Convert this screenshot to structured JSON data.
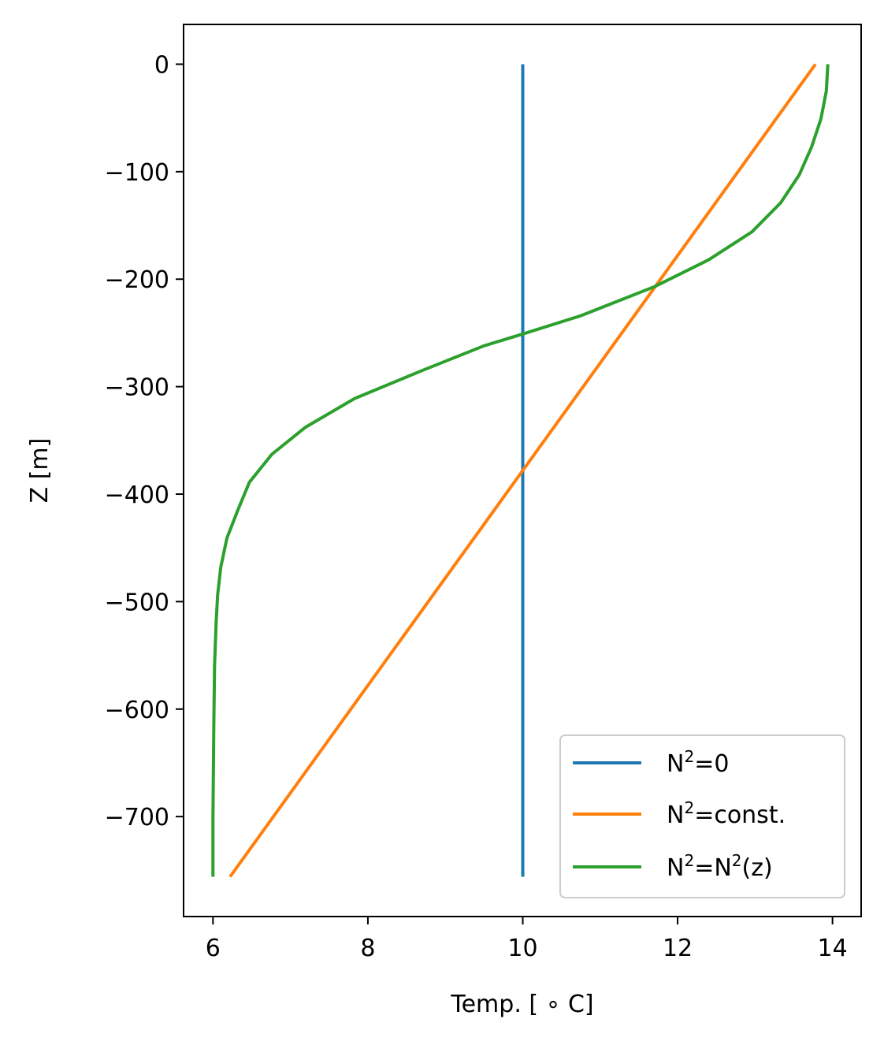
{
  "chart_data": {
    "type": "line",
    "xlabel": "Temp. [$^\\circ$C]",
    "xlabel_display": "Temp. [ ∘ C]",
    "ylabel": "Z [m]",
    "xlim": [
      5.62,
      14.37
    ],
    "ylim": [
      -793,
      37
    ],
    "xticks": [
      6,
      8,
      10,
      12,
      14
    ],
    "xtick_labels": [
      "6",
      "8",
      "10",
      "12",
      "14"
    ],
    "yticks": [
      0,
      -100,
      -200,
      -300,
      -400,
      -500,
      -600,
      -700
    ],
    "ytick_labels": [
      "0",
      "−100",
      "−200",
      "−300",
      "−400",
      "−500",
      "−600",
      "−700"
    ],
    "grid": false,
    "legend_position": "lower right",
    "series": [
      {
        "name": "N²=0",
        "color": "#1f77b4",
        "points": [
          [
            10,
            0
          ],
          [
            10,
            -756
          ]
        ]
      },
      {
        "name": "N²=const.",
        "color": "#ff7f0e",
        "points": [
          [
            13.78,
            0
          ],
          [
            6.22,
            -756
          ]
        ]
      },
      {
        "name": "N²=N²(z)",
        "color": "#2ca02c",
        "points": [
          [
            13.94,
            0
          ],
          [
            13.92,
            -25
          ],
          [
            13.85,
            -51
          ],
          [
            13.73,
            -77
          ],
          [
            13.57,
            -103
          ],
          [
            13.33,
            -129
          ],
          [
            12.96,
            -156
          ],
          [
            12.4,
            -182
          ],
          [
            11.7,
            -207
          ],
          [
            10.75,
            -234
          ],
          [
            10.0,
            -251
          ],
          [
            9.5,
            -262
          ],
          [
            8.7,
            -285
          ],
          [
            7.83,
            -311
          ],
          [
            7.19,
            -338
          ],
          [
            6.76,
            -363
          ],
          [
            6.47,
            -389
          ],
          [
            6.32,
            -415
          ],
          [
            6.18,
            -441
          ],
          [
            6.1,
            -468
          ],
          [
            6.06,
            -494
          ],
          [
            6.04,
            -520
          ],
          [
            6.02,
            -560
          ],
          [
            6.01,
            -620
          ],
          [
            6.0,
            -700
          ],
          [
            6.0,
            -756
          ]
        ]
      }
    ]
  }
}
